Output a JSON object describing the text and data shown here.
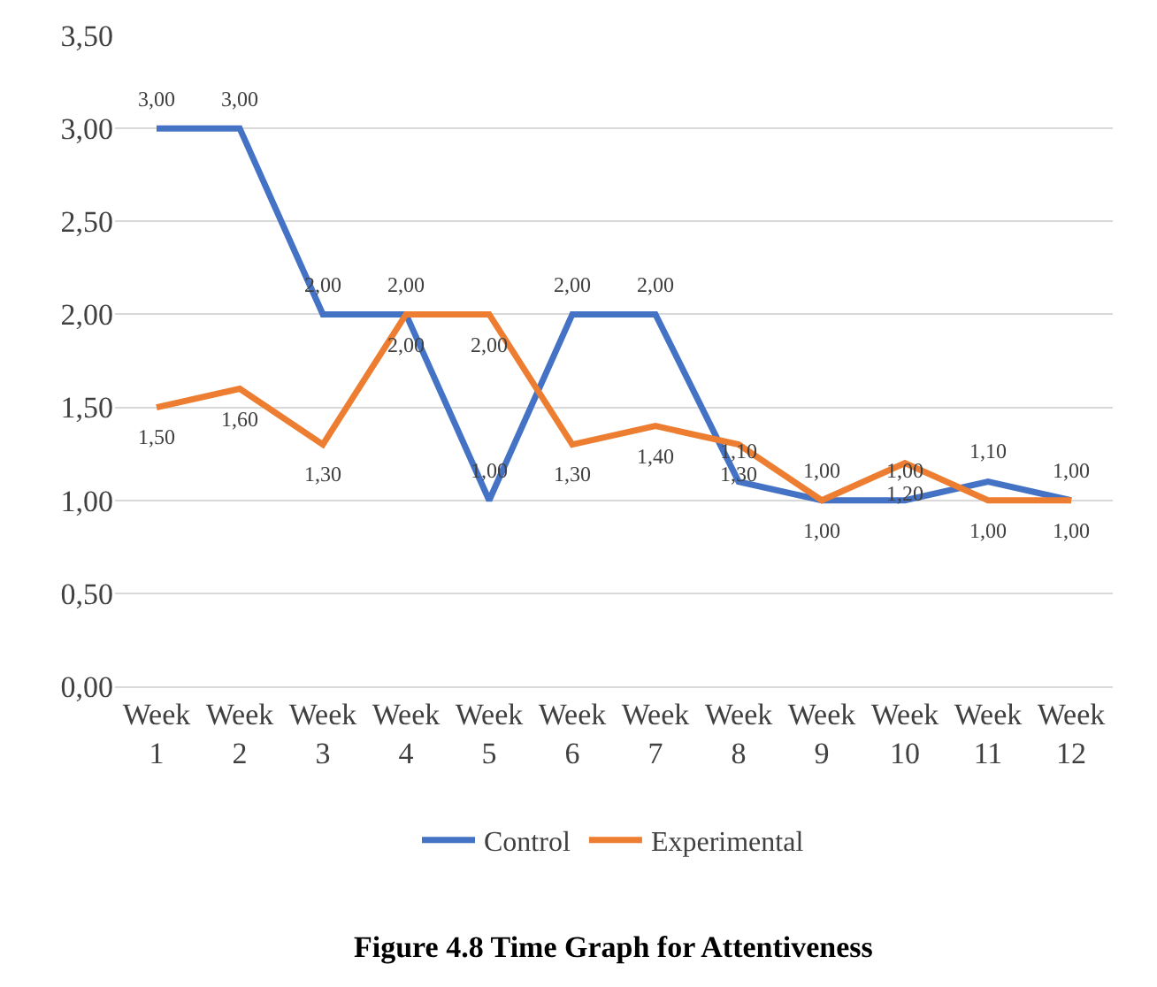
{
  "chart_data": {
    "type": "line",
    "title": "Figure 4.8 Time Graph for Attentiveness",
    "categories": [
      "Week 1",
      "Week 2",
      "Week 3",
      "Week 4",
      "Week 5",
      "Week 6",
      "Week 7",
      "Week 8",
      "Week 9",
      "Week 10",
      "Week 11",
      "Week 12"
    ],
    "series": [
      {
        "name": "Control",
        "color": "#4472c4",
        "values": [
          3.0,
          3.0,
          2.0,
          2.0,
          1.0,
          2.0,
          2.0,
          1.1,
          1.0,
          1.0,
          1.1,
          1.0
        ],
        "value_labels": [
          "3,00",
          "3,00",
          "2,00",
          "2,00",
          "1,00",
          "2,00",
          "2,00",
          "1,10",
          "1,00",
          "1,00",
          "1,10",
          "1,00"
        ]
      },
      {
        "name": "Experimental",
        "color": "#ed7d31",
        "values": [
          1.5,
          1.6,
          1.3,
          2.0,
          2.0,
          1.3,
          1.4,
          1.3,
          1.0,
          1.2,
          1.0,
          1.0
        ],
        "value_labels": [
          "1,50",
          "1,60",
          "1,30",
          "2,00",
          "2,00",
          "1,30",
          "1,40",
          "1,30",
          "1,00",
          "1,20",
          "1,00",
          "1,00"
        ]
      }
    ],
    "ylim": [
      0,
      3.5
    ],
    "yticks": [
      {
        "value": 0,
        "label": "0,00"
      },
      {
        "value": 0.5,
        "label": "0,50"
      },
      {
        "value": 1,
        "label": "1,00"
      },
      {
        "value": 1.5,
        "label": "1,50"
      },
      {
        "value": 2,
        "label": "2,00"
      },
      {
        "value": 2.5,
        "label": "2,50"
      },
      {
        "value": 3,
        "label": "3,00"
      },
      {
        "value": 3.5,
        "label": "3,50"
      }
    ],
    "grid": "y",
    "legend": "bottom",
    "marker": "none",
    "line_style": "solid"
  }
}
